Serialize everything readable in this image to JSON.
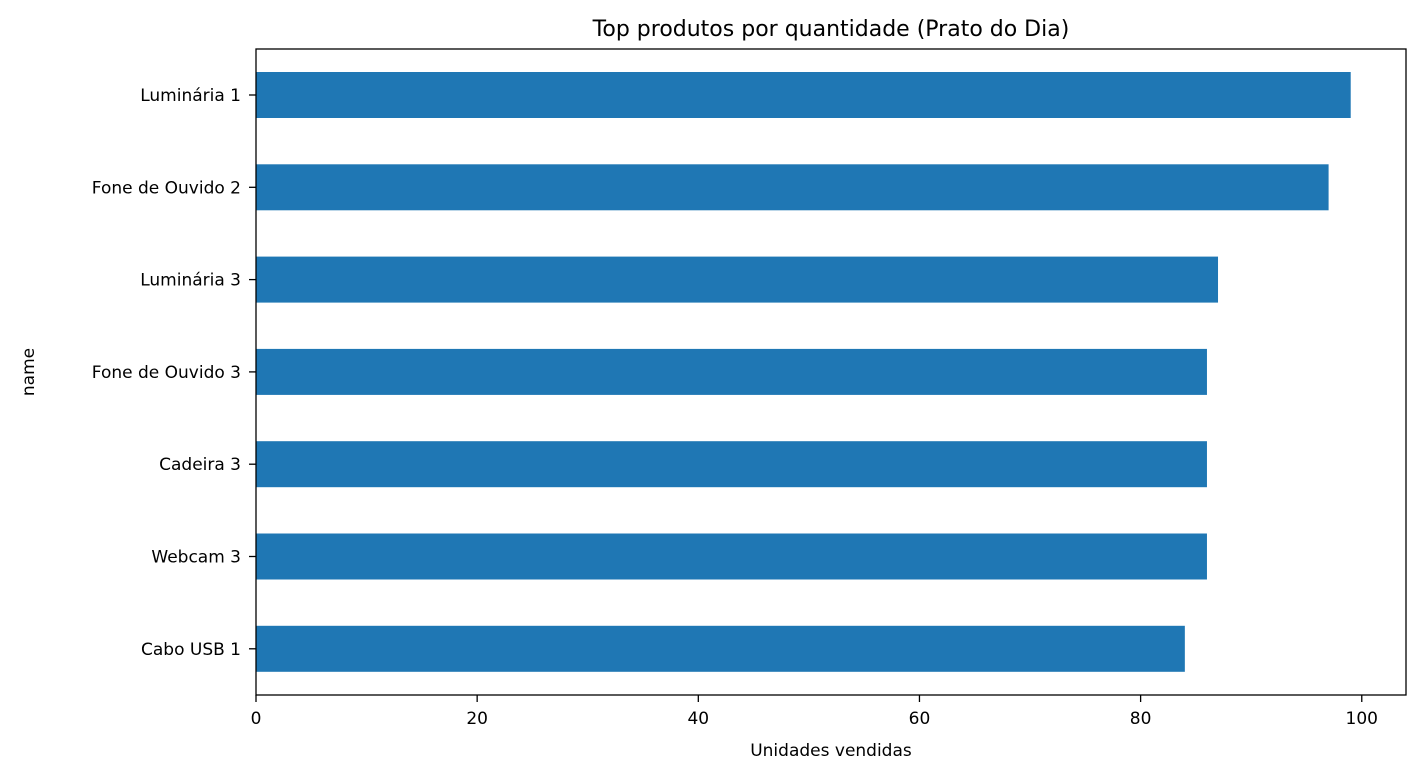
{
  "chart_data": {
    "type": "bar",
    "orientation": "horizontal",
    "title": "Top produtos por quantidade (Prato do Dia)",
    "xlabel": "Unidades vendidas",
    "ylabel": "name",
    "categories": [
      "Luminária 1",
      "Fone de Ouvido 2",
      "Luminária 3",
      "Fone de Ouvido 3",
      "Cadeira 3",
      "Webcam 3",
      "Cabo USB 1"
    ],
    "values": [
      99,
      97,
      87,
      86,
      86,
      86,
      84
    ],
    "xlim": [
      0,
      104
    ],
    "xticks": [
      0,
      20,
      40,
      60,
      80,
      100
    ],
    "grid": false,
    "bar_color": "#1f77b4"
  }
}
